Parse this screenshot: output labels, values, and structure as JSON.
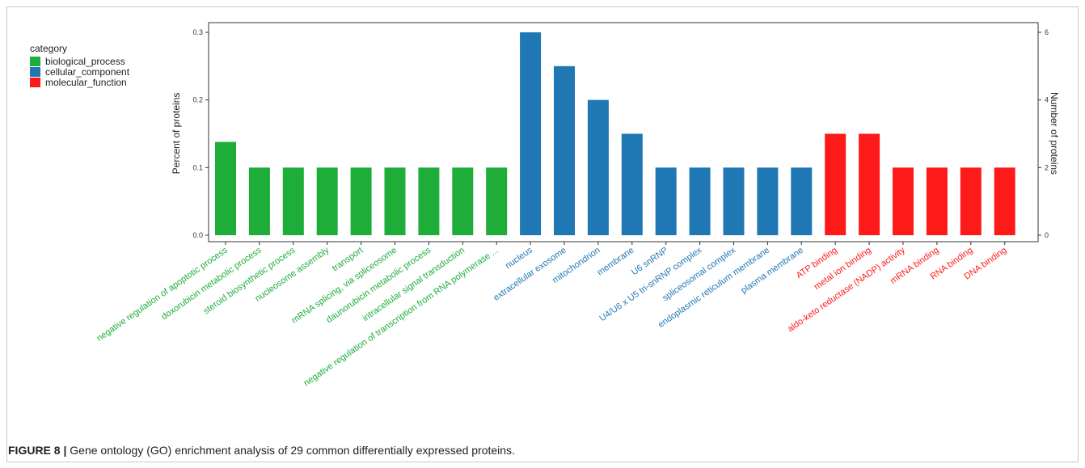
{
  "caption": {
    "label": "FIGURE 8 |",
    "text": " Gene ontology (GO) enrichment analysis of 29 common differentially expressed proteins."
  },
  "chart_data": {
    "type": "bar",
    "ylabel": "Percent of proteins",
    "y2label": "Number of proteins",
    "ylim": [
      0,
      0.3
    ],
    "y2lim": [
      0,
      6
    ],
    "yticks": [
      "0.0",
      "0.1",
      "0.2",
      "0.3"
    ],
    "y2ticks": [
      "0",
      "2",
      "4",
      "6"
    ],
    "legend": {
      "title": "category",
      "position": "top-left",
      "entries": [
        {
          "name": "biological_process",
          "color": "#1fad3a"
        },
        {
          "name": "cellular_component",
          "color": "#1f77b4"
        },
        {
          "name": "molecular_function",
          "color": "#ff1a1a"
        }
      ]
    },
    "categories": [
      "negative regulation of apoptotic process",
      "doxorubicin metabolic process",
      "steroid biosynthetic process",
      "nucleosome assembly",
      "transport",
      "mRNA splicing, via spliceosome",
      "daunorubicin metabolic process",
      "intracellular signal transduction",
      "negative regulation of transcription from RNA polymerase ...",
      "nucleus",
      "extracellular exosome",
      "mitochondrion",
      "membrane",
      "U6 snRNP",
      "U4/U6 x U5 tri-snRNP complex",
      "spliceosomal complex",
      "endoplasmic reticulum membrane",
      "plasma membrane",
      "ATP binding",
      "metal ion binding",
      "aldo-keto reductase (NADP) activity",
      "mRNA binding",
      "RNA binding",
      "DNA binding"
    ],
    "groups": [
      "biological_process",
      "biological_process",
      "biological_process",
      "biological_process",
      "biological_process",
      "biological_process",
      "biological_process",
      "biological_process",
      "biological_process",
      "cellular_component",
      "cellular_component",
      "cellular_component",
      "cellular_component",
      "cellular_component",
      "cellular_component",
      "cellular_component",
      "cellular_component",
      "cellular_component",
      "molecular_function",
      "molecular_function",
      "molecular_function",
      "molecular_function",
      "molecular_function",
      "molecular_function"
    ],
    "values": [
      0.138,
      0.1,
      0.1,
      0.1,
      0.1,
      0.1,
      0.1,
      0.1,
      0.1,
      0.3,
      0.25,
      0.2,
      0.15,
      0.1,
      0.1,
      0.1,
      0.1,
      0.1,
      0.15,
      0.15,
      0.1,
      0.1,
      0.1,
      0.1
    ]
  }
}
